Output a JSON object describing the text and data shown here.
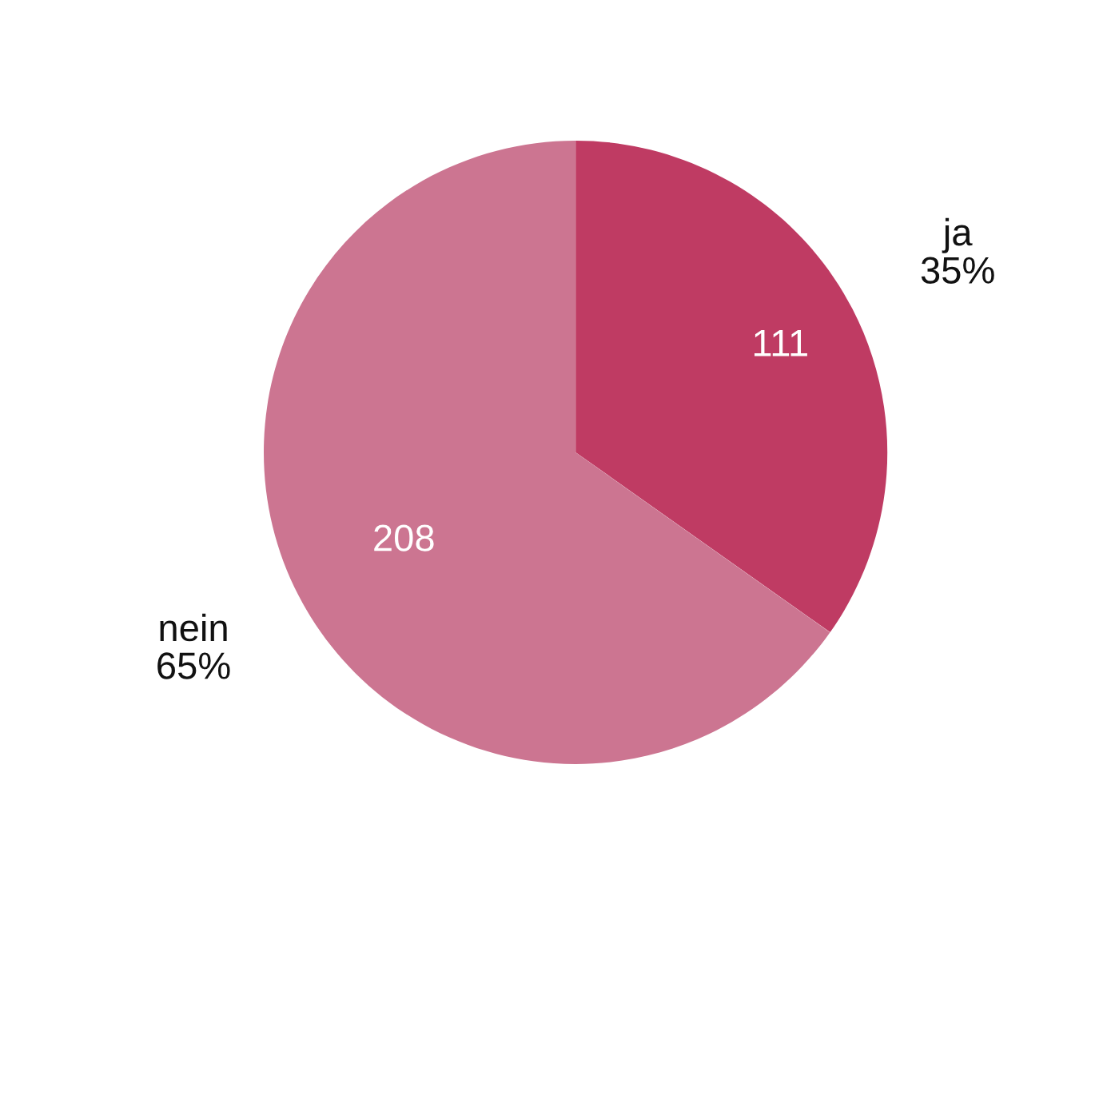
{
  "chart_data": {
    "type": "pie",
    "categories": [
      "ja",
      "nein"
    ],
    "values": [
      111,
      208
    ],
    "colors": [
      "#bf3b63",
      "#cc7591"
    ],
    "data_labels": true,
    "annotations": [
      "35%",
      "65%"
    ]
  }
}
